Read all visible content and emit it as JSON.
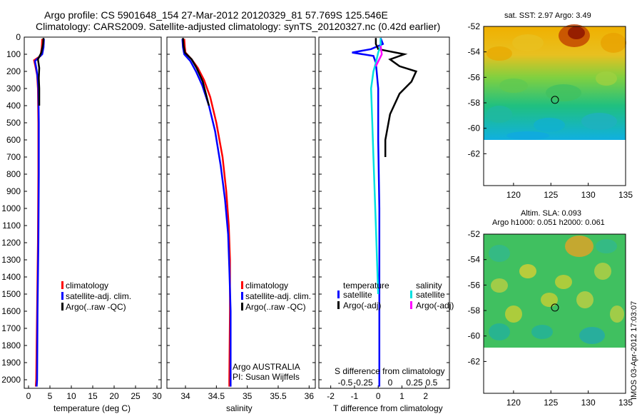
{
  "header": {
    "line1": "Argo profile: CS 5901648_154 27-Mar-2012 20120329_81 57.769S 125.546E",
    "line2": "Climatology: CARS2009. Satellite-adjusted climatology: synTS_20120327.nc (0.42d earlier)"
  },
  "colors": {
    "climatology": "#ff0000",
    "satellite": "#0000ff",
    "argo": "#000000",
    "satellite_diff": "#00e0e0",
    "argo_diff": "#ff00ff"
  },
  "chart_data": [
    {
      "type": "line",
      "name": "temperature-panel",
      "xlabel": "temperature (deg C)",
      "ylabel": "",
      "xlim": [
        -1,
        31
      ],
      "ylim": [
        2050,
        0
      ],
      "x_ticks": [
        "0",
        "5",
        "10",
        "15",
        "20",
        "25",
        "30"
      ],
      "y_ticks": [
        "0",
        "100",
        "200",
        "300",
        "400",
        "500",
        "600",
        "700",
        "800",
        "900",
        "1000",
        "1100",
        "1200",
        "1300",
        "1400",
        "1500",
        "1600",
        "1700",
        "1800",
        "1900",
        "2000"
      ],
      "legend": [
        "climatology",
        "satellite-adj. clim.",
        "Argo(..raw -QC)"
      ],
      "series": [
        {
          "name": "climatology",
          "color": "#ff0000",
          "points": [
            [
              3.2,
              10
            ],
            [
              3.1,
              60
            ],
            [
              2.8,
              110
            ],
            [
              1.3,
              135
            ],
            [
              1.6,
              170
            ],
            [
              2.0,
              220
            ],
            [
              2.2,
              300
            ],
            [
              2.3,
              500
            ],
            [
              2.3,
              800
            ],
            [
              2.2,
              1200
            ],
            [
              2.0,
              1600
            ],
            [
              1.8,
              2000
            ],
            [
              1.7,
              2040
            ]
          ]
        },
        {
          "name": "satellite-adj. clim.",
          "color": "#0000ff",
          "points": [
            [
              3.6,
              10
            ],
            [
              3.5,
              60
            ],
            [
              3.2,
              100
            ],
            [
              1.5,
              140
            ],
            [
              1.8,
              180
            ],
            [
              2.1,
              230
            ],
            [
              2.3,
              300
            ],
            [
              2.4,
              500
            ],
            [
              2.4,
              800
            ],
            [
              2.3,
              1200
            ],
            [
              2.1,
              1600
            ],
            [
              2.0,
              2000
            ],
            [
              1.9,
              2040
            ]
          ]
        },
        {
          "name": "Argo(..raw -QC)",
          "color": "#000000",
          "points": [
            [
              3.5,
              5
            ],
            [
              3.4,
              40
            ],
            [
              3.0,
              90
            ],
            [
              2.2,
              130
            ],
            [
              2.5,
              180
            ],
            [
              2.4,
              240
            ],
            [
              2.5,
              300
            ],
            [
              2.5,
              400
            ]
          ]
        }
      ]
    },
    {
      "type": "line",
      "name": "salinity-panel",
      "xlabel": "salinity",
      "xlim": [
        33.7,
        36.1
      ],
      "ylim": [
        2050,
        0
      ],
      "x_ticks": [
        "34",
        "34.5",
        "35",
        "35.5",
        "36"
      ],
      "legend": [
        "climatology",
        "satellite-adj. clim.",
        "Argo(..raw -QC)"
      ],
      "annotation": [
        "Argo AUSTRALIA",
        "PI: Susan Wijffels"
      ],
      "series": [
        {
          "name": "climatology",
          "color": "#ff0000",
          "points": [
            [
              33.98,
              10
            ],
            [
              33.99,
              60
            ],
            [
              34.0,
              90
            ],
            [
              34.1,
              130
            ],
            [
              34.2,
              180
            ],
            [
              34.3,
              250
            ],
            [
              34.4,
              350
            ],
            [
              34.5,
              500
            ],
            [
              34.6,
              700
            ],
            [
              34.66,
              900
            ],
            [
              34.7,
              1100
            ],
            [
              34.72,
              1300
            ],
            [
              34.72,
              1600
            ],
            [
              34.71,
              2000
            ],
            [
              34.71,
              2040
            ]
          ]
        },
        {
          "name": "satellite-adj. clim.",
          "color": "#0000ff",
          "points": [
            [
              33.95,
              10
            ],
            [
              33.96,
              60
            ],
            [
              33.98,
              100
            ],
            [
              34.08,
              140
            ],
            [
              34.17,
              200
            ],
            [
              34.27,
              280
            ],
            [
              34.38,
              400
            ],
            [
              34.48,
              550
            ],
            [
              34.57,
              750
            ],
            [
              34.64,
              950
            ],
            [
              34.69,
              1150
            ],
            [
              34.71,
              1350
            ],
            [
              34.73,
              1600
            ],
            [
              34.73,
              2000
            ],
            [
              34.73,
              2040
            ]
          ]
        },
        {
          "name": "Argo(..raw -QC)",
          "color": "#000000",
          "points": [
            [
              33.96,
              5
            ],
            [
              33.97,
              50
            ],
            [
              33.99,
              90
            ],
            [
              34.1,
              130
            ],
            [
              34.18,
              180
            ],
            [
              34.28,
              260
            ],
            [
              34.38,
              400
            ]
          ]
        }
      ]
    },
    {
      "type": "line",
      "name": "difference-panel",
      "xlabel": "T difference from climatology",
      "x2label": "S difference from climatology",
      "xlim": [
        -2.5,
        3
      ],
      "ylim": [
        2050,
        0
      ],
      "x_ticks": [
        "-2",
        "-1",
        "0",
        "1",
        "2"
      ],
      "x2_ticks": [
        "-0.5",
        "-0.25",
        "0",
        "0.25",
        "0.5"
      ],
      "legend_headers": [
        "temperature",
        "salinity"
      ],
      "legend": [
        "satellite",
        "Argo(-adj)",
        "satellite",
        "Argo(-adj)"
      ],
      "series": [
        {
          "name": "T satellite",
          "color": "#0000ff",
          "points": [
            [
              0.1,
              5
            ],
            [
              0.2,
              40
            ],
            [
              -0.3,
              70
            ],
            [
              -1.1,
              90
            ],
            [
              -0.2,
              110
            ],
            [
              -0.1,
              150
            ],
            [
              0.0,
              300
            ],
            [
              0.0,
              600
            ],
            [
              0.05,
              1000
            ],
            [
              0.05,
              1500
            ],
            [
              0.05,
              2000
            ],
            [
              0.05,
              2040
            ]
          ]
        },
        {
          "name": "T Argo(-adj)",
          "color": "#000000",
          "points": [
            [
              -0.1,
              5
            ],
            [
              -0.1,
              40
            ],
            [
              0.0,
              70
            ],
            [
              1.1,
              100
            ],
            [
              0.5,
              130
            ],
            [
              0.9,
              170
            ],
            [
              1.6,
              200
            ],
            [
              1.4,
              260
            ],
            [
              0.9,
              330
            ],
            [
              0.5,
              450
            ],
            [
              0.3,
              600
            ],
            [
              0.3,
              700
            ]
          ]
        },
        {
          "name": "S satellite",
          "color": "#00e0e0",
          "points": [
            [
              0.1,
              5
            ],
            [
              0.1,
              50
            ],
            [
              0.0,
              90
            ],
            [
              -0.1,
              150
            ],
            [
              -0.2,
              200
            ],
            [
              -0.3,
              300
            ],
            [
              -0.25,
              500
            ],
            [
              -0.2,
              700
            ],
            [
              -0.15,
              900
            ],
            [
              -0.1,
              1100
            ],
            [
              -0.05,
              1300
            ],
            [
              0.0,
              1500
            ]
          ]
        },
        {
          "name": "S Argo(-adj)",
          "color": "#ff00ff",
          "points": [
            [
              0.1,
              50
            ],
            [
              0.15,
              100
            ],
            [
              -0.1,
              170
            ]
          ]
        }
      ]
    }
  ],
  "maps": [
    {
      "name": "sst-map",
      "title": "sat. SST: 2.97 Argo: 3.49",
      "x_ticks": [
        "120",
        "125",
        "130",
        "135"
      ],
      "y_ticks": [
        "-52",
        "-54",
        "-56",
        "-58",
        "-60",
        "-62"
      ],
      "xlim": [
        116,
        135
      ],
      "ylim": [
        -64.5,
        -52
      ],
      "data_bottom": -60,
      "argo_position": [
        125.546,
        -57.769
      ]
    },
    {
      "name": "sla-map",
      "title": "Altim. SLA: 0.093",
      "title2": "Argo h1000: 0.051 h2000: 0.061",
      "x_ticks": [
        "120",
        "125",
        "130",
        "135"
      ],
      "y_ticks": [
        "-52",
        "-54",
        "-56",
        "-58",
        "-60",
        "-62"
      ],
      "xlim": [
        116,
        135
      ],
      "ylim": [
        -64.5,
        -52
      ],
      "data_bottom": -60,
      "argo_position": [
        125.546,
        -57.769
      ]
    }
  ],
  "footer": {
    "stamp": "IMOS 03-Apr-2012 17:03:07"
  }
}
